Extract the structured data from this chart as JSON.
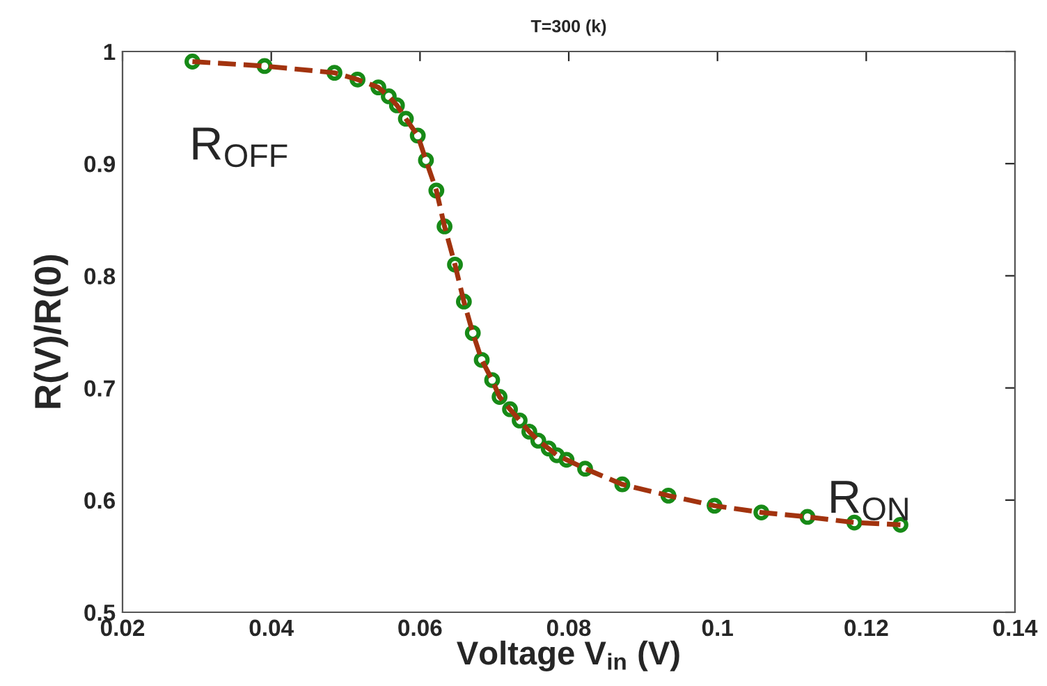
{
  "chart_data": {
    "type": "line",
    "title": "T=300 (k)",
    "xlabel": "Voltage V$_{in}$ (V)",
    "ylabel": "R(V)/R(0)",
    "xlim": [
      0.02,
      0.14
    ],
    "xticks": [
      0.02,
      0.04,
      0.06,
      0.08,
      0.1,
      0.12,
      0.14
    ],
    "ylim": [
      0.5,
      1
    ],
    "yticks": [
      0.5,
      0.6,
      0.7,
      0.8,
      0.9,
      1
    ],
    "grid": false,
    "annotations": [
      "R$_{OFF}$",
      "R$_{ON}$"
    ],
    "series": [
      {
        "type": "scatter",
        "marker": "circle",
        "color": "#178a17",
        "x": [
          0.0294,
          0.0391,
          0.0485,
          0.0516,
          0.0544,
          0.0558,
          0.0569,
          0.0581,
          0.0597,
          0.0608,
          0.0622,
          0.0633,
          0.0647,
          0.0659,
          0.0671,
          0.0683,
          0.0697,
          0.0707,
          0.0721,
          0.0734,
          0.0747,
          0.0759,
          0.0773,
          0.0784,
          0.0797,
          0.0822,
          0.0872,
          0.0934,
          0.0996,
          0.1059,
          0.1121,
          0.1184,
          0.1246
        ],
        "values": [
          0.991,
          0.987,
          0.981,
          0.975,
          0.968,
          0.96,
          0.952,
          0.94,
          0.925,
          0.903,
          0.876,
          0.844,
          0.81,
          0.777,
          0.749,
          0.725,
          0.707,
          0.692,
          0.681,
          0.671,
          0.661,
          0.653,
          0.646,
          0.64,
          0.636,
          0.628,
          0.614,
          0.604,
          0.595,
          0.589,
          0.585,
          0.58,
          0.578
        ]
      },
      {
        "line_style": "dashed",
        "marker": "none",
        "color": "#a2330e",
        "x": [
          0.0294,
          0.0391,
          0.0485,
          0.0516,
          0.0544,
          0.0558,
          0.0569,
          0.0581,
          0.0597,
          0.0608,
          0.0622,
          0.0633,
          0.0647,
          0.0659,
          0.0671,
          0.0683,
          0.0697,
          0.0707,
          0.0721,
          0.0734,
          0.0747,
          0.0759,
          0.0773,
          0.0784,
          0.0797,
          0.0822,
          0.0872,
          0.0934,
          0.0996,
          0.1059,
          0.1121,
          0.1184,
          0.1246
        ],
        "values": [
          0.991,
          0.987,
          0.981,
          0.975,
          0.968,
          0.96,
          0.952,
          0.94,
          0.925,
          0.903,
          0.876,
          0.844,
          0.81,
          0.777,
          0.749,
          0.725,
          0.707,
          0.692,
          0.681,
          0.671,
          0.661,
          0.653,
          0.646,
          0.64,
          0.636,
          0.628,
          0.614,
          0.604,
          0.595,
          0.589,
          0.585,
          0.58,
          0.578
        ]
      }
    ]
  }
}
